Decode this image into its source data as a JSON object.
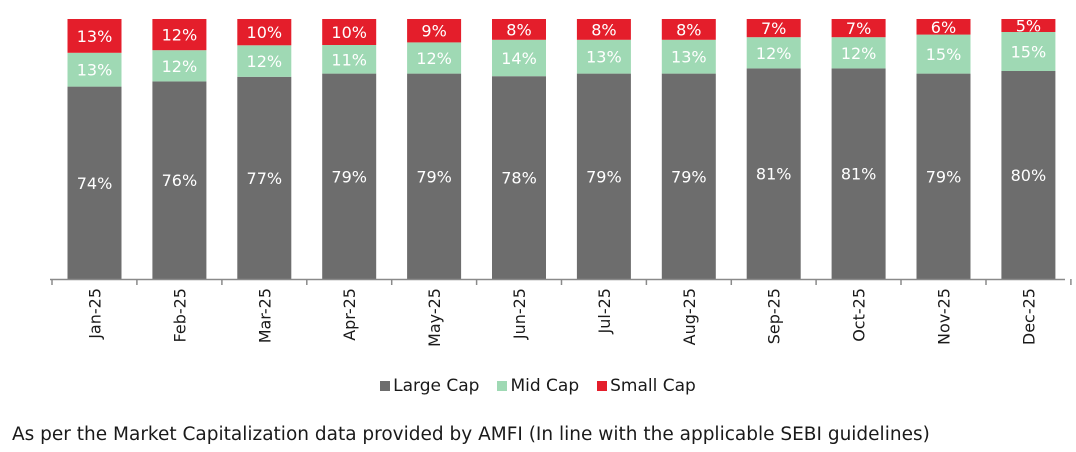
{
  "chart_data": {
    "type": "bar",
    "stacked": true,
    "categories": [
      "Jan-25",
      "Feb-25",
      "Mar-25",
      "Apr-25",
      "May-25",
      "Jun-25",
      "Jul-25",
      "Aug-25",
      "Sep-25",
      "Oct-25",
      "Nov-25",
      "Dec-25"
    ],
    "series": [
      {
        "name": "Large Cap",
        "color": "#6d6d6d",
        "values": [
          74,
          76,
          77,
          79,
          79,
          78,
          79,
          79,
          81,
          81,
          79,
          80
        ]
      },
      {
        "name": "Mid Cap",
        "color": "#9fd9b4",
        "values": [
          13,
          12,
          12,
          11,
          12,
          14,
          13,
          13,
          12,
          12,
          15,
          15
        ]
      },
      {
        "name": "Small Cap",
        "color": "#e41e2b",
        "values": [
          13,
          12,
          10,
          10,
          9,
          8,
          8,
          8,
          7,
          7,
          6,
          5
        ]
      }
    ],
    "value_suffix": "%",
    "xlabel": "",
    "ylabel": "",
    "legend_position": "bottom",
    "grid": false
  },
  "footnote": "As per the Market Capitalization data provided by AMFI (In line with the applicable SEBI guidelines)"
}
